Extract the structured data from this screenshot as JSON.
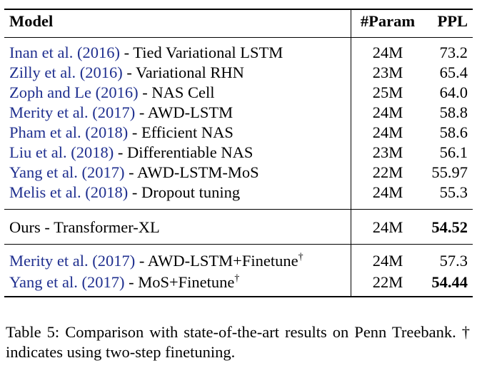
{
  "table": {
    "headers": {
      "model": "Model",
      "param": "#Param",
      "ppl": "PPL"
    },
    "baseline_rows": [
      {
        "cite": "Inan et al. (2016)",
        "desc": " - Tied Variational LSTM",
        "param": "24M",
        "ppl": "73.2"
      },
      {
        "cite": "Zilly et al. (2016)",
        "desc": " - Variational RHN",
        "param": "23M",
        "ppl": "65.4"
      },
      {
        "cite": "Zoph and Le (2016)",
        "desc": " - NAS Cell",
        "param": "25M",
        "ppl": "64.0"
      },
      {
        "cite": "Merity et al. (2017)",
        "desc": " - AWD-LSTM",
        "param": "24M",
        "ppl": "58.8"
      },
      {
        "cite": "Pham et al. (2018)",
        "desc": " - Efficient NAS",
        "param": "24M",
        "ppl": "58.6"
      },
      {
        "cite": "Liu et al. (2018)",
        "desc": " - Differentiable NAS",
        "param": "23M",
        "ppl": "56.1"
      },
      {
        "cite": "Yang et al. (2017)",
        "desc": " - AWD-LSTM-MoS",
        "param": "22M",
        "ppl": "55.97"
      },
      {
        "cite": "Melis et al. (2018)",
        "desc": " - Dropout tuning",
        "param": "24M",
        "ppl": "55.3"
      }
    ],
    "ours_row": {
      "model": "Ours - Transformer-XL",
      "param": "24M",
      "ppl": "54.52"
    },
    "finetune_rows": [
      {
        "cite": "Merity et al. (2017)",
        "desc": " - AWD-LSTM+Finetune",
        "mark": "†",
        "param": "24M",
        "ppl": "57.3"
      },
      {
        "cite": "Yang et al. (2017)",
        "desc": " - MoS+Finetune",
        "mark": "†",
        "param": "22M",
        "ppl": "54.44"
      }
    ]
  },
  "caption": "Table 5: Comparison with state-of-the-art results on Penn Treebank. † indicates using two-step finetuning.",
  "colors": {
    "citation": "#1f2f8f",
    "text": "#000000"
  }
}
